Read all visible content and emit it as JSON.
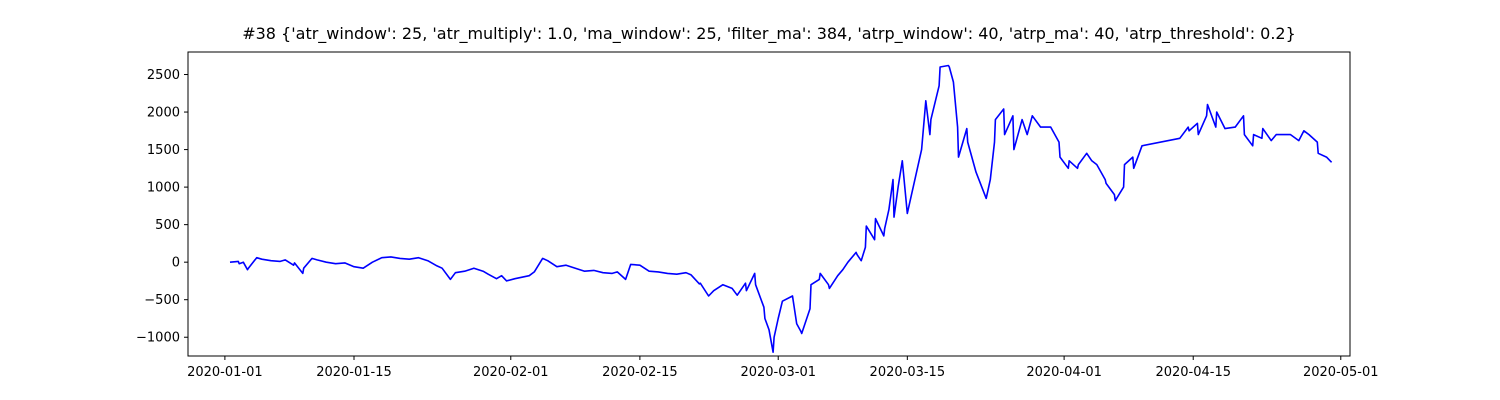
{
  "chart_data": {
    "type": "line",
    "title": "#38 {'atr_window': 25, 'atr_multiply': 1.0, 'ma_window': 25, 'filter_ma': 384, 'atrp_window': 40, 'atrp_ma': 40, 'atrp_threshold': 0.2}",
    "xlabel": "",
    "ylabel": "",
    "xlim": [
      "2019-12-28",
      "2020-05-02"
    ],
    "ylim": [
      -1250,
      2800
    ],
    "grid": false,
    "x_tick_labels": [
      "2020-01-01",
      "2020-01-15",
      "2020-02-01",
      "2020-02-15",
      "2020-03-01",
      "2020-03-15",
      "2020-04-01",
      "2020-04-15",
      "2020-05-01"
    ],
    "y_ticks": [
      -1000,
      -500,
      0,
      500,
      1000,
      1500,
      2000,
      2500
    ],
    "y_tick_labels": [
      "−1000",
      "−500",
      "0",
      "500",
      "1000",
      "1500",
      "2000",
      "2500"
    ],
    "series": [
      {
        "color": "#0000ff",
        "points": [
          [
            "2020-01-02",
            0
          ],
          [
            "2020-01-02",
            10
          ],
          [
            "2020-01-03",
            -20
          ],
          [
            "2020-01-03",
            0
          ],
          [
            "2020-01-03",
            -100
          ],
          [
            "2020-01-04",
            -80
          ],
          [
            "2020-01-04",
            60
          ],
          [
            "2020-01-05",
            40
          ],
          [
            "2020-01-06",
            20
          ],
          [
            "2020-01-07",
            10
          ],
          [
            "2020-01-08",
            30
          ],
          [
            "2020-01-08",
            -40
          ],
          [
            "2020-01-09",
            -10
          ],
          [
            "2020-01-09",
            -150
          ],
          [
            "2020-01-10",
            -80
          ],
          [
            "2020-01-10",
            50
          ],
          [
            "2020-01-11",
            30
          ],
          [
            "2020-01-12",
            0
          ],
          [
            "2020-01-13",
            -20
          ],
          [
            "2020-01-14",
            -10
          ],
          [
            "2020-01-15",
            -60
          ],
          [
            "2020-01-16",
            -80
          ],
          [
            "2020-01-17",
            0
          ],
          [
            "2020-01-18",
            60
          ],
          [
            "2020-01-19",
            70
          ],
          [
            "2020-01-20",
            50
          ],
          [
            "2020-01-21",
            40
          ],
          [
            "2020-01-22",
            60
          ],
          [
            "2020-01-23",
            20
          ],
          [
            "2020-01-24",
            -50
          ],
          [
            "2020-01-25",
            -80
          ],
          [
            "2020-01-25",
            -230
          ],
          [
            "2020-01-26",
            -140
          ],
          [
            "2020-01-27",
            -120
          ],
          [
            "2020-01-28",
            -80
          ],
          [
            "2020-01-29",
            -120
          ],
          [
            "2020-01-30",
            -160
          ],
          [
            "2020-01-30",
            -220
          ],
          [
            "2020-01-31",
            -180
          ],
          [
            "2020-02-01",
            -250
          ],
          [
            "2020-02-01",
            -220
          ],
          [
            "2020-02-03",
            -180
          ],
          [
            "2020-02-04",
            -130
          ],
          [
            "2020-02-04",
            50
          ],
          [
            "2020-02-05",
            20
          ],
          [
            "2020-02-06",
            -60
          ],
          [
            "2020-02-07",
            -40
          ],
          [
            "2020-02-08",
            -80
          ],
          [
            "2020-02-09",
            -120
          ],
          [
            "2020-02-10",
            -110
          ],
          [
            "2020-02-11",
            -140
          ],
          [
            "2020-02-12",
            -150
          ],
          [
            "2020-02-13",
            -130
          ],
          [
            "2020-02-13",
            -230
          ],
          [
            "2020-02-14",
            -30
          ],
          [
            "2020-02-15",
            -40
          ],
          [
            "2020-02-16",
            -120
          ],
          [
            "2020-02-17",
            -130
          ],
          [
            "2020-02-18",
            -150
          ],
          [
            "2020-02-19",
            -160
          ],
          [
            "2020-02-20",
            -140
          ],
          [
            "2020-02-21",
            -170
          ],
          [
            "2020-02-21",
            -290
          ],
          [
            "2020-02-22",
            -280
          ],
          [
            "2020-02-22",
            -450
          ],
          [
            "2020-02-23",
            -380
          ],
          [
            "2020-02-24",
            -300
          ],
          [
            "2020-02-25",
            -350
          ],
          [
            "2020-02-26",
            -440
          ],
          [
            "2020-02-26",
            -280
          ],
          [
            "2020-02-27",
            -380
          ],
          [
            "2020-02-27",
            -150
          ],
          [
            "2020-02-28",
            -300
          ],
          [
            "2020-02-28",
            -600
          ],
          [
            "2020-02-29",
            -750
          ],
          [
            "2020-02-29",
            -900
          ],
          [
            "2020-02-29",
            -1200
          ],
          [
            "2020-03-01",
            -1000
          ],
          [
            "2020-03-01",
            -750
          ],
          [
            "2020-03-01",
            -520
          ],
          [
            "2020-03-03",
            -450
          ],
          [
            "2020-03-03",
            -820
          ],
          [
            "2020-03-03",
            -920
          ],
          [
            "2020-03-04",
            -950
          ],
          [
            "2020-03-04",
            -620
          ],
          [
            "2020-03-05",
            -300
          ],
          [
            "2020-03-05",
            -230
          ],
          [
            "2020-03-06",
            -150
          ],
          [
            "2020-03-06",
            -300
          ],
          [
            "2020-03-07",
            -350
          ],
          [
            "2020-03-07",
            -180
          ],
          [
            "2020-03-08",
            -100
          ],
          [
            "2020-03-09",
            0
          ],
          [
            "2020-03-09",
            130
          ],
          [
            "2020-03-10",
            100
          ],
          [
            "2020-03-10",
            20
          ],
          [
            "2020-03-10",
            200
          ],
          [
            "2020-03-11",
            480
          ],
          [
            "2020-03-11",
            300
          ],
          [
            "2020-03-12",
            580
          ],
          [
            "2020-03-12",
            350
          ],
          [
            "2020-03-13",
            450
          ],
          [
            "2020-03-13",
            700
          ],
          [
            "2020-03-13",
            1100
          ],
          [
            "2020-03-14",
            600
          ],
          [
            "2020-03-14",
            1000
          ],
          [
            "2020-03-14",
            1350
          ],
          [
            "2020-03-15",
            650
          ],
          [
            "2020-03-17",
            1500
          ],
          [
            "2020-03-17",
            2150
          ],
          [
            "2020-03-17",
            1700
          ],
          [
            "2020-03-18",
            1900
          ],
          [
            "2020-03-18",
            2350
          ],
          [
            "2020-03-19",
            2600
          ],
          [
            "2020-03-19",
            2620
          ],
          [
            "2020-03-20",
            2600
          ],
          [
            "2020-03-20",
            2400
          ],
          [
            "2020-03-20",
            1800
          ],
          [
            "2020-03-21",
            1400
          ],
          [
            "2020-03-21",
            1780
          ],
          [
            "2020-03-22",
            1600
          ],
          [
            "2020-03-22",
            1200
          ],
          [
            "2020-03-24",
            850
          ],
          [
            "2020-03-24",
            1100
          ],
          [
            "2020-03-24",
            1600
          ],
          [
            "2020-03-25",
            1900
          ],
          [
            "2020-03-25",
            2040
          ],
          [
            "2020-03-26",
            1700
          ],
          [
            "2020-03-26",
            1950
          ],
          [
            "2020-03-27",
            1500
          ],
          [
            "2020-03-27",
            1900
          ],
          [
            "2020-03-28",
            1700
          ],
          [
            "2020-03-29",
            1950
          ],
          [
            "2020-03-29",
            1800
          ],
          [
            "2020-03-31",
            1800
          ],
          [
            "2020-03-31",
            1600
          ],
          [
            "2020-04-01",
            1400
          ],
          [
            "2020-04-01",
            1250
          ],
          [
            "2020-04-02",
            1350
          ],
          [
            "2020-04-02",
            1250
          ],
          [
            "2020-04-03",
            1300
          ],
          [
            "2020-04-03",
            1450
          ],
          [
            "2020-04-04",
            1350
          ],
          [
            "2020-04-05",
            1300
          ],
          [
            "2020-04-05",
            1100
          ],
          [
            "2020-04-06",
            1050
          ],
          [
            "2020-04-06",
            900
          ],
          [
            "2020-04-07",
            820
          ],
          [
            "2020-04-07",
            1000
          ],
          [
            "2020-04-08",
            1300
          ],
          [
            "2020-04-08",
            1400
          ],
          [
            "2020-04-09",
            1250
          ],
          [
            "2020-04-09",
            1550
          ],
          [
            "2020-04-14",
            1650
          ],
          [
            "2020-04-14",
            1800
          ],
          [
            "2020-04-15",
            1750
          ],
          [
            "2020-04-15",
            1850
          ],
          [
            "2020-04-16",
            1700
          ],
          [
            "2020-04-16",
            1950
          ],
          [
            "2020-04-17",
            2100
          ],
          [
            "2020-04-17",
            1800
          ],
          [
            "2020-04-18",
            2000
          ],
          [
            "2020-04-18",
            1780
          ],
          [
            "2020-04-20",
            1800
          ],
          [
            "2020-04-20",
            1950
          ],
          [
            "2020-04-21",
            1700
          ],
          [
            "2020-04-21",
            1550
          ],
          [
            "2020-04-22",
            1700
          ],
          [
            "2020-04-22",
            1650
          ],
          [
            "2020-04-23",
            1780
          ],
          [
            "2020-04-23",
            1620
          ],
          [
            "2020-04-24",
            1700
          ],
          [
            "2020-04-26",
            1700
          ],
          [
            "2020-04-26",
            1620
          ],
          [
            "2020-04-27",
            1750
          ],
          [
            "2020-04-28",
            1700
          ],
          [
            "2020-04-28",
            1600
          ],
          [
            "2020-04-29",
            1450
          ],
          [
            "2020-04-29",
            1400
          ],
          [
            "2020-04-30",
            1330
          ]
        ]
      }
    ]
  }
}
